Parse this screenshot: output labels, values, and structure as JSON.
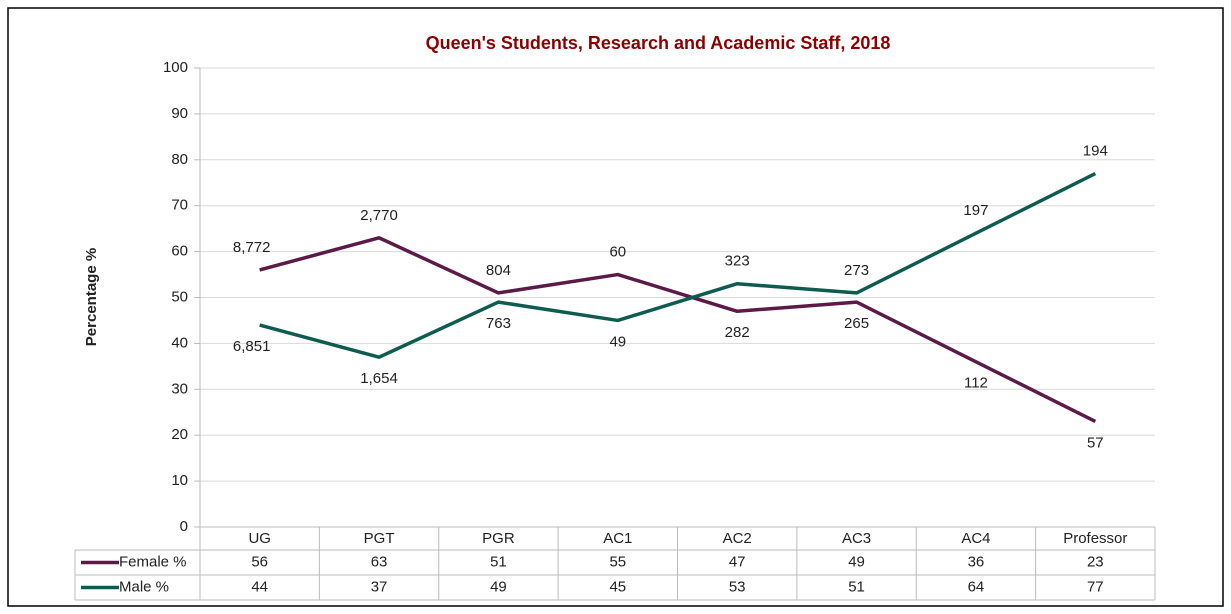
{
  "chart_data": {
    "type": "line",
    "title": "Queen's Students, Research and Academic Staff, 2018",
    "y_label": "Percentage %",
    "categories": [
      "UG",
      "PGT",
      "PGR",
      "AC1",
      "AC2",
      "AC3",
      "AC4",
      "Professor"
    ],
    "series": [
      {
        "name": "Female %",
        "color": "#5b1a48",
        "values": [
          56,
          63,
          51,
          55,
          47,
          49,
          36,
          23
        ],
        "labels": [
          "8,772",
          "2,770",
          "804",
          "60",
          "282",
          "265",
          "112",
          "57"
        ]
      },
      {
        "name": "Male %",
        "color": "#0e5c4f",
        "values": [
          44,
          37,
          49,
          45,
          53,
          51,
          64,
          77
        ],
        "labels": [
          "6,851",
          "1,654",
          "763",
          "49",
          "323",
          "273",
          "197",
          "194"
        ]
      }
    ],
    "ylim": [
      0,
      100
    ],
    "yticks": [
      0,
      10,
      20,
      30,
      40,
      50,
      60,
      70,
      80,
      90,
      100
    ],
    "grid": true,
    "data_table": true
  }
}
